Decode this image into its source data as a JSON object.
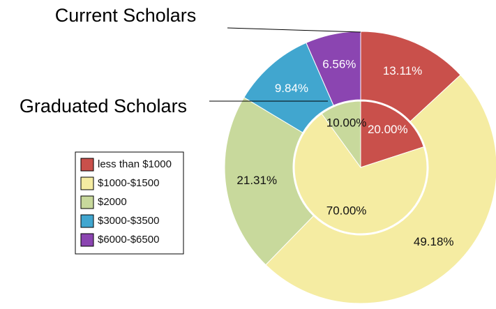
{
  "chart_data": {
    "type": "nested-donut",
    "categories": [
      "less than $1000",
      "$1000-$1500",
      "$2000",
      "$3000-$3500",
      "$6000-$6500"
    ],
    "colors": [
      "#c9504b",
      "#f5eca2",
      "#c8d99c",
      "#41a6cf",
      "#8b45b1"
    ],
    "series": [
      {
        "name": "Current Scholars",
        "ring": "outer",
        "values": [
          13.11,
          49.18,
          21.31,
          9.84,
          6.56
        ],
        "value_labels": [
          "13.11%",
          "49.18%",
          "21.31%",
          "9.84%",
          "6.56%"
        ]
      },
      {
        "name": "Graduated Scholars",
        "ring": "inner",
        "values": [
          20,
          70,
          10,
          0,
          0
        ],
        "value_labels": [
          "20.00%",
          "70.00%",
          "10.00%",
          null,
          null
        ]
      }
    ],
    "legend": "left"
  }
}
